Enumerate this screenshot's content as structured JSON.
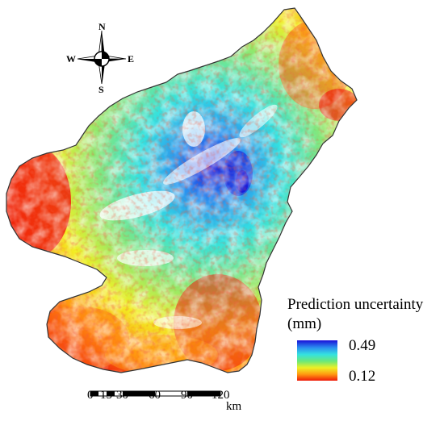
{
  "compass": {
    "north": "N",
    "south": "S",
    "east": "E",
    "west": "W"
  },
  "legend": {
    "title_line1": "Prediction uncertainty",
    "title_line2": "(mm)",
    "max_value": "0.49",
    "min_value": "0.12",
    "colors": [
      "#1a10d8",
      "#2a8ef0",
      "#34e2e0",
      "#6de878",
      "#eef024",
      "#ff9a10",
      "#ee1a0a"
    ]
  },
  "scale_bar": {
    "ticks": [
      "0",
      "15",
      "30",
      "60",
      "90",
      "120"
    ],
    "unit": "km"
  }
}
